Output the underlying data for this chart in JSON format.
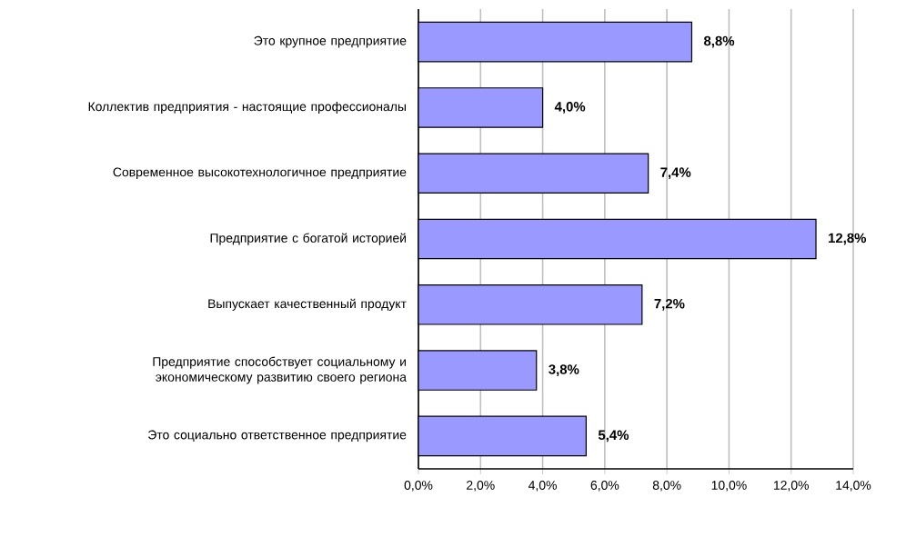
{
  "chart_data": {
    "type": "bar",
    "orientation": "horizontal",
    "categories": [
      "Это крупное предприятие",
      "Коллектив предприятия -  настоящие профессионалы",
      "Современное высокотехнологичное предприятие",
      "Предприятие с богатой историей",
      "Выпускает качественный продукт",
      "Предприятие способствует социальному и экономическому развитию своего региона",
      "Это социально ответственное предприятие"
    ],
    "values": [
      8.8,
      4.0,
      7.4,
      12.8,
      7.2,
      3.8,
      5.4
    ],
    "value_labels": [
      "8,8%",
      "4,0%",
      "7,4%",
      "12,8%",
      "7,2%",
      "3,8%",
      "5,4%"
    ],
    "color": "#9999ff",
    "xlim": [
      0,
      14
    ],
    "xticks": [
      {
        "value": 0,
        "label": "0,0%"
      },
      {
        "value": 2,
        "label": "2,0%"
      },
      {
        "value": 4,
        "label": "4,0%"
      },
      {
        "value": 6,
        "label": "6,0%"
      },
      {
        "value": 8,
        "label": "8,0%"
      },
      {
        "value": 10,
        "label": "10,0%"
      },
      {
        "value": 12,
        "label": "12,0%"
      },
      {
        "value": 14,
        "label": "14,0%"
      }
    ],
    "grid": "x"
  }
}
